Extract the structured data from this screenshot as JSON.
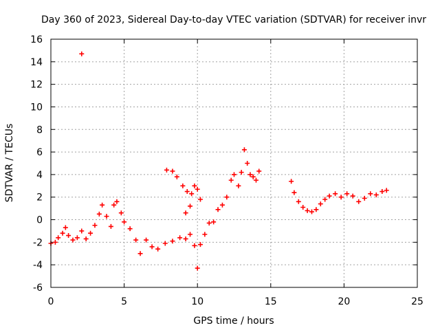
{
  "chart_data": {
    "type": "scatter",
    "title": "Day 360 of 2023, Sidereal Day-to-day VTEC variation (SDTVAR) for receiver invr",
    "xlabel": "GPS time / hours",
    "ylabel": "SDTVAR / TECUs",
    "xlim": [
      0,
      25
    ],
    "ylim": [
      -6,
      16
    ],
    "xticks": [
      "0",
      "5",
      "10",
      "15",
      "20",
      "25"
    ],
    "yticks": [
      "-6",
      "-4",
      "-2",
      "0",
      "2",
      "4",
      "6",
      "8",
      "10",
      "12",
      "14",
      "16"
    ],
    "grid": true,
    "marker": "+",
    "color": "#ff0000",
    "series": [
      {
        "name": "SDTVAR",
        "points": [
          [
            0.0,
            -2.1
          ],
          [
            0.3,
            -2.0
          ],
          [
            0.5,
            -1.6
          ],
          [
            0.8,
            -1.2
          ],
          [
            1.0,
            -0.7
          ],
          [
            1.2,
            -1.4
          ],
          [
            1.5,
            -1.8
          ],
          [
            1.8,
            -1.6
          ],
          [
            2.1,
            -1.0
          ],
          [
            2.4,
            -1.7
          ],
          [
            2.7,
            -1.2
          ],
          [
            3.0,
            -0.5
          ],
          [
            3.3,
            0.5
          ],
          [
            3.5,
            1.3
          ],
          [
            3.8,
            0.3
          ],
          [
            4.1,
            -0.6
          ],
          [
            4.3,
            1.3
          ],
          [
            4.5,
            1.6
          ],
          [
            4.8,
            0.6
          ],
          [
            5.0,
            -0.2
          ],
          [
            5.4,
            -0.8
          ],
          [
            5.8,
            -1.8
          ],
          [
            6.1,
            -3.0
          ],
          [
            6.5,
            -1.8
          ],
          [
            6.9,
            -2.4
          ],
          [
            7.3,
            -2.6
          ],
          [
            7.8,
            -2.1
          ],
          [
            8.3,
            -1.9
          ],
          [
            8.8,
            -1.6
          ],
          [
            9.2,
            -1.7
          ],
          [
            9.5,
            -1.3
          ],
          [
            9.8,
            -2.3
          ],
          [
            10.0,
            -4.3
          ],
          [
            10.2,
            -2.2
          ],
          [
            10.5,
            -1.3
          ],
          [
            10.8,
            -0.3
          ],
          [
            11.1,
            -0.2
          ],
          [
            11.4,
            0.9
          ],
          [
            11.7,
            1.3
          ],
          [
            12.0,
            2.0
          ],
          [
            12.3,
            3.5
          ],
          [
            12.5,
            4.0
          ],
          [
            12.8,
            3.0
          ],
          [
            13.0,
            4.2
          ],
          [
            13.2,
            6.2
          ],
          [
            13.4,
            5.0
          ],
          [
            13.6,
            4.0
          ],
          [
            13.8,
            3.8
          ],
          [
            14.0,
            3.5
          ],
          [
            14.2,
            4.3
          ],
          [
            7.9,
            4.4
          ],
          [
            8.3,
            4.3
          ],
          [
            8.6,
            3.8
          ],
          [
            9.0,
            3.0
          ],
          [
            9.3,
            2.5
          ],
          [
            9.6,
            2.3
          ],
          [
            9.8,
            3.0
          ],
          [
            10.0,
            2.7
          ],
          [
            10.2,
            1.8
          ],
          [
            9.5,
            1.2
          ],
          [
            9.2,
            0.6
          ],
          [
            16.4,
            3.4
          ],
          [
            16.6,
            2.4
          ],
          [
            16.9,
            1.6
          ],
          [
            17.2,
            1.1
          ],
          [
            17.5,
            0.8
          ],
          [
            17.8,
            0.7
          ],
          [
            18.1,
            0.9
          ],
          [
            18.4,
            1.4
          ],
          [
            18.7,
            1.8
          ],
          [
            19.0,
            2.1
          ],
          [
            19.4,
            2.3
          ],
          [
            19.8,
            2.0
          ],
          [
            20.2,
            2.3
          ],
          [
            20.6,
            2.1
          ],
          [
            21.0,
            1.6
          ],
          [
            21.4,
            1.9
          ],
          [
            21.8,
            2.3
          ],
          [
            22.2,
            2.2
          ],
          [
            22.6,
            2.5
          ],
          [
            22.9,
            2.6
          ],
          [
            2.1,
            14.7
          ]
        ]
      }
    ]
  }
}
